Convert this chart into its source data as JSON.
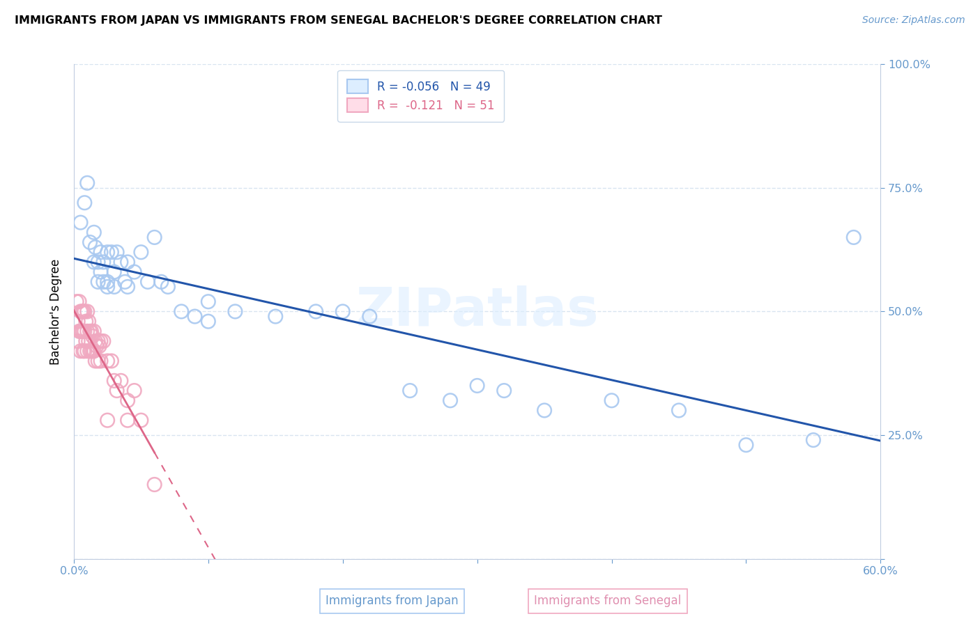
{
  "title": "IMMIGRANTS FROM JAPAN VS IMMIGRANTS FROM SENEGAL BACHELOR'S DEGREE CORRELATION CHART",
  "source": "Source: ZipAtlas.com",
  "xlabel_japan": "Immigrants from Japan",
  "xlabel_senegal": "Immigrants from Senegal",
  "ylabel": "Bachelor's Degree",
  "watermark": "ZIPatlas",
  "japan_color": "#a8c8f0",
  "senegal_color": "#f0a8c0",
  "japan_line_color": "#2255aa",
  "senegal_line_color": "#dd6688",
  "axis_tick_color": "#6699cc",
  "grid_color": "#d8e4f0",
  "xlim": [
    0.0,
    0.6
  ],
  "ylim": [
    0.0,
    1.0
  ],
  "japan_R": -0.056,
  "japan_N": 49,
  "senegal_R": -0.121,
  "senegal_N": 51,
  "japan_x": [
    0.005,
    0.008,
    0.01,
    0.012,
    0.015,
    0.015,
    0.016,
    0.018,
    0.018,
    0.02,
    0.02,
    0.022,
    0.022,
    0.025,
    0.025,
    0.025,
    0.028,
    0.03,
    0.03,
    0.032,
    0.035,
    0.038,
    0.04,
    0.04,
    0.045,
    0.05,
    0.055,
    0.06,
    0.065,
    0.07,
    0.08,
    0.09,
    0.1,
    0.1,
    0.12,
    0.15,
    0.18,
    0.2,
    0.22,
    0.25,
    0.28,
    0.3,
    0.32,
    0.35,
    0.4,
    0.45,
    0.5,
    0.55,
    0.58
  ],
  "japan_y": [
    0.68,
    0.72,
    0.76,
    0.64,
    0.6,
    0.66,
    0.63,
    0.6,
    0.56,
    0.62,
    0.58,
    0.6,
    0.56,
    0.56,
    0.62,
    0.55,
    0.62,
    0.58,
    0.55,
    0.62,
    0.6,
    0.56,
    0.6,
    0.55,
    0.58,
    0.62,
    0.56,
    0.65,
    0.56,
    0.55,
    0.5,
    0.49,
    0.52,
    0.48,
    0.5,
    0.49,
    0.5,
    0.5,
    0.49,
    0.34,
    0.32,
    0.35,
    0.34,
    0.3,
    0.32,
    0.3,
    0.23,
    0.24,
    0.65
  ],
  "senegal_x": [
    0.002,
    0.003,
    0.003,
    0.004,
    0.004,
    0.005,
    0.005,
    0.005,
    0.006,
    0.006,
    0.007,
    0.007,
    0.007,
    0.008,
    0.008,
    0.008,
    0.009,
    0.009,
    0.01,
    0.01,
    0.01,
    0.011,
    0.011,
    0.012,
    0.012,
    0.013,
    0.013,
    0.014,
    0.014,
    0.015,
    0.015,
    0.016,
    0.016,
    0.017,
    0.018,
    0.018,
    0.019,
    0.02,
    0.02,
    0.022,
    0.025,
    0.025,
    0.028,
    0.03,
    0.032,
    0.035,
    0.04,
    0.04,
    0.045,
    0.05,
    0.06
  ],
  "senegal_y": [
    0.52,
    0.48,
    0.44,
    0.52,
    0.46,
    0.5,
    0.46,
    0.42,
    0.5,
    0.46,
    0.5,
    0.46,
    0.42,
    0.5,
    0.46,
    0.42,
    0.48,
    0.44,
    0.5,
    0.46,
    0.42,
    0.48,
    0.44,
    0.46,
    0.42,
    0.46,
    0.42,
    0.45,
    0.42,
    0.46,
    0.42,
    0.44,
    0.4,
    0.43,
    0.44,
    0.4,
    0.43,
    0.44,
    0.4,
    0.44,
    0.4,
    0.28,
    0.4,
    0.36,
    0.34,
    0.36,
    0.32,
    0.28,
    0.34,
    0.28,
    0.15
  ]
}
